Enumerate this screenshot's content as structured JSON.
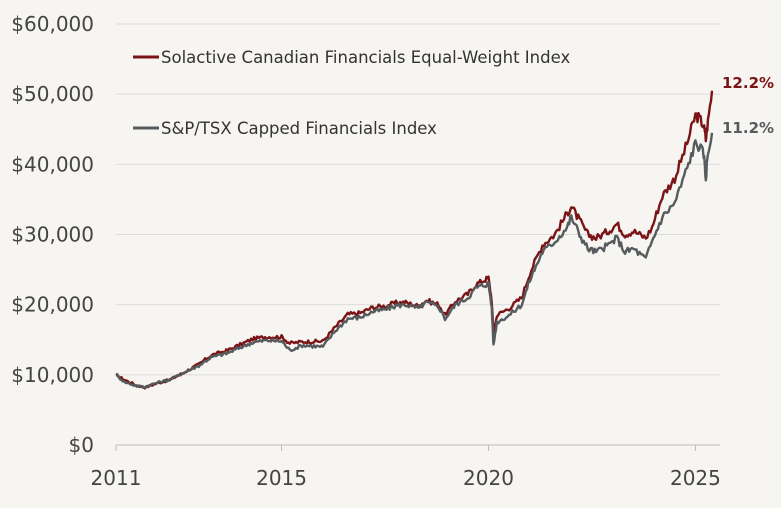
{
  "chart_data": {
    "type": "line",
    "title": "",
    "xlabel": "",
    "ylabel": "",
    "xlim": [
      2011,
      2025.4
    ],
    "ylim": [
      0,
      60000
    ],
    "x_ticks": [
      2011,
      2015,
      2020,
      2025
    ],
    "x_tick_labels": [
      "2011",
      "2015",
      "2020",
      "2025"
    ],
    "y_ticks": [
      0,
      10000,
      20000,
      30000,
      40000,
      50000,
      60000
    ],
    "y_tick_labels": [
      "$0",
      "$10,000",
      "$20,000",
      "$30,000",
      "$40,000",
      "$50,000",
      "$60,000"
    ],
    "grid": "horizontal",
    "legend_position": "top-left",
    "series": [
      {
        "name": "Solactive Canadian Financials Equal-Weight Index",
        "color": "#7b1416",
        "end_label": "12.2%",
        "points": [
          [
            2011.0,
            10000
          ],
          [
            2011.2,
            9300
          ],
          [
            2011.5,
            8500
          ],
          [
            2011.7,
            8200
          ],
          [
            2012.0,
            8800
          ],
          [
            2012.3,
            9300
          ],
          [
            2012.6,
            10200
          ],
          [
            2013.0,
            11500
          ],
          [
            2013.3,
            12800
          ],
          [
            2013.7,
            13500
          ],
          [
            2014.0,
            14300
          ],
          [
            2014.3,
            15100
          ],
          [
            2014.6,
            15400
          ],
          [
            2015.0,
            15400
          ],
          [
            2015.2,
            14500
          ],
          [
            2015.5,
            14700
          ],
          [
            2016.0,
            14800
          ],
          [
            2016.3,
            16800
          ],
          [
            2016.6,
            18600
          ],
          [
            2016.9,
            18800
          ],
          [
            2017.2,
            19600
          ],
          [
            2017.5,
            19800
          ],
          [
            2017.8,
            20300
          ],
          [
            2018.0,
            20300
          ],
          [
            2018.3,
            19800
          ],
          [
            2018.5,
            20600
          ],
          [
            2018.8,
            20000
          ],
          [
            2018.95,
            18500
          ],
          [
            2019.2,
            20500
          ],
          [
            2019.5,
            21500
          ],
          [
            2019.7,
            22900
          ],
          [
            2019.9,
            23500
          ],
          [
            2020.0,
            23800
          ],
          [
            2020.08,
            20500
          ],
          [
            2020.12,
            15500
          ],
          [
            2020.2,
            18500
          ],
          [
            2020.5,
            19500
          ],
          [
            2020.8,
            21000
          ],
          [
            2021.0,
            24500
          ],
          [
            2021.3,
            28500
          ],
          [
            2021.6,
            30000
          ],
          [
            2021.9,
            33000
          ],
          [
            2022.0,
            34000
          ],
          [
            2022.2,
            32000
          ],
          [
            2022.4,
            30000
          ],
          [
            2022.6,
            29500
          ],
          [
            2022.9,
            30500
          ],
          [
            2023.1,
            31500
          ],
          [
            2023.3,
            30000
          ],
          [
            2023.5,
            30500
          ],
          [
            2023.8,
            29500
          ],
          [
            2023.95,
            31000
          ],
          [
            2024.2,
            35500
          ],
          [
            2024.5,
            38000
          ],
          [
            2024.8,
            43000
          ],
          [
            2025.0,
            47000
          ],
          [
            2025.1,
            46500
          ],
          [
            2025.2,
            45500
          ],
          [
            2025.25,
            43500
          ],
          [
            2025.3,
            46000
          ],
          [
            2025.4,
            50500
          ]
        ]
      },
      {
        "name": "S&P/TSX Capped Financials Index",
        "color": "#555b5e",
        "end_label": "11.2%",
        "points": [
          [
            2011.0,
            10000
          ],
          [
            2011.2,
            9000
          ],
          [
            2011.5,
            8400
          ],
          [
            2011.7,
            8300
          ],
          [
            2012.0,
            8900
          ],
          [
            2012.3,
            9300
          ],
          [
            2012.6,
            10200
          ],
          [
            2013.0,
            11300
          ],
          [
            2013.3,
            12500
          ],
          [
            2013.7,
            13100
          ],
          [
            2014.0,
            13900
          ],
          [
            2014.3,
            14600
          ],
          [
            2014.6,
            14900
          ],
          [
            2015.0,
            14800
          ],
          [
            2015.2,
            13500
          ],
          [
            2015.5,
            14200
          ],
          [
            2016.0,
            14000
          ],
          [
            2016.3,
            16300
          ],
          [
            2016.6,
            18000
          ],
          [
            2016.9,
            18200
          ],
          [
            2017.2,
            19000
          ],
          [
            2017.5,
            19300
          ],
          [
            2017.8,
            19900
          ],
          [
            2018.0,
            20000
          ],
          [
            2018.3,
            19500
          ],
          [
            2018.5,
            20300
          ],
          [
            2018.8,
            19700
          ],
          [
            2018.95,
            18000
          ],
          [
            2019.2,
            20000
          ],
          [
            2019.5,
            21000
          ],
          [
            2019.7,
            22400
          ],
          [
            2019.9,
            22800
          ],
          [
            2020.0,
            23000
          ],
          [
            2020.08,
            19500
          ],
          [
            2020.12,
            14200
          ],
          [
            2020.2,
            17500
          ],
          [
            2020.5,
            18500
          ],
          [
            2020.8,
            20000
          ],
          [
            2021.0,
            23500
          ],
          [
            2021.3,
            27500
          ],
          [
            2021.6,
            29000
          ],
          [
            2021.9,
            31000
          ],
          [
            2022.0,
            32500
          ],
          [
            2022.2,
            30000
          ],
          [
            2022.4,
            28000
          ],
          [
            2022.6,
            27500
          ],
          [
            2022.9,
            28500
          ],
          [
            2023.1,
            29500
          ],
          [
            2023.3,
            27500
          ],
          [
            2023.5,
            28000
          ],
          [
            2023.8,
            26500
          ],
          [
            2023.95,
            29000
          ],
          [
            2024.2,
            32500
          ],
          [
            2024.5,
            34500
          ],
          [
            2024.8,
            39500
          ],
          [
            2025.0,
            43000
          ],
          [
            2025.1,
            42500
          ],
          [
            2025.2,
            41500
          ],
          [
            2025.25,
            38000
          ],
          [
            2025.3,
            41500
          ],
          [
            2025.4,
            44500
          ]
        ]
      }
    ]
  }
}
